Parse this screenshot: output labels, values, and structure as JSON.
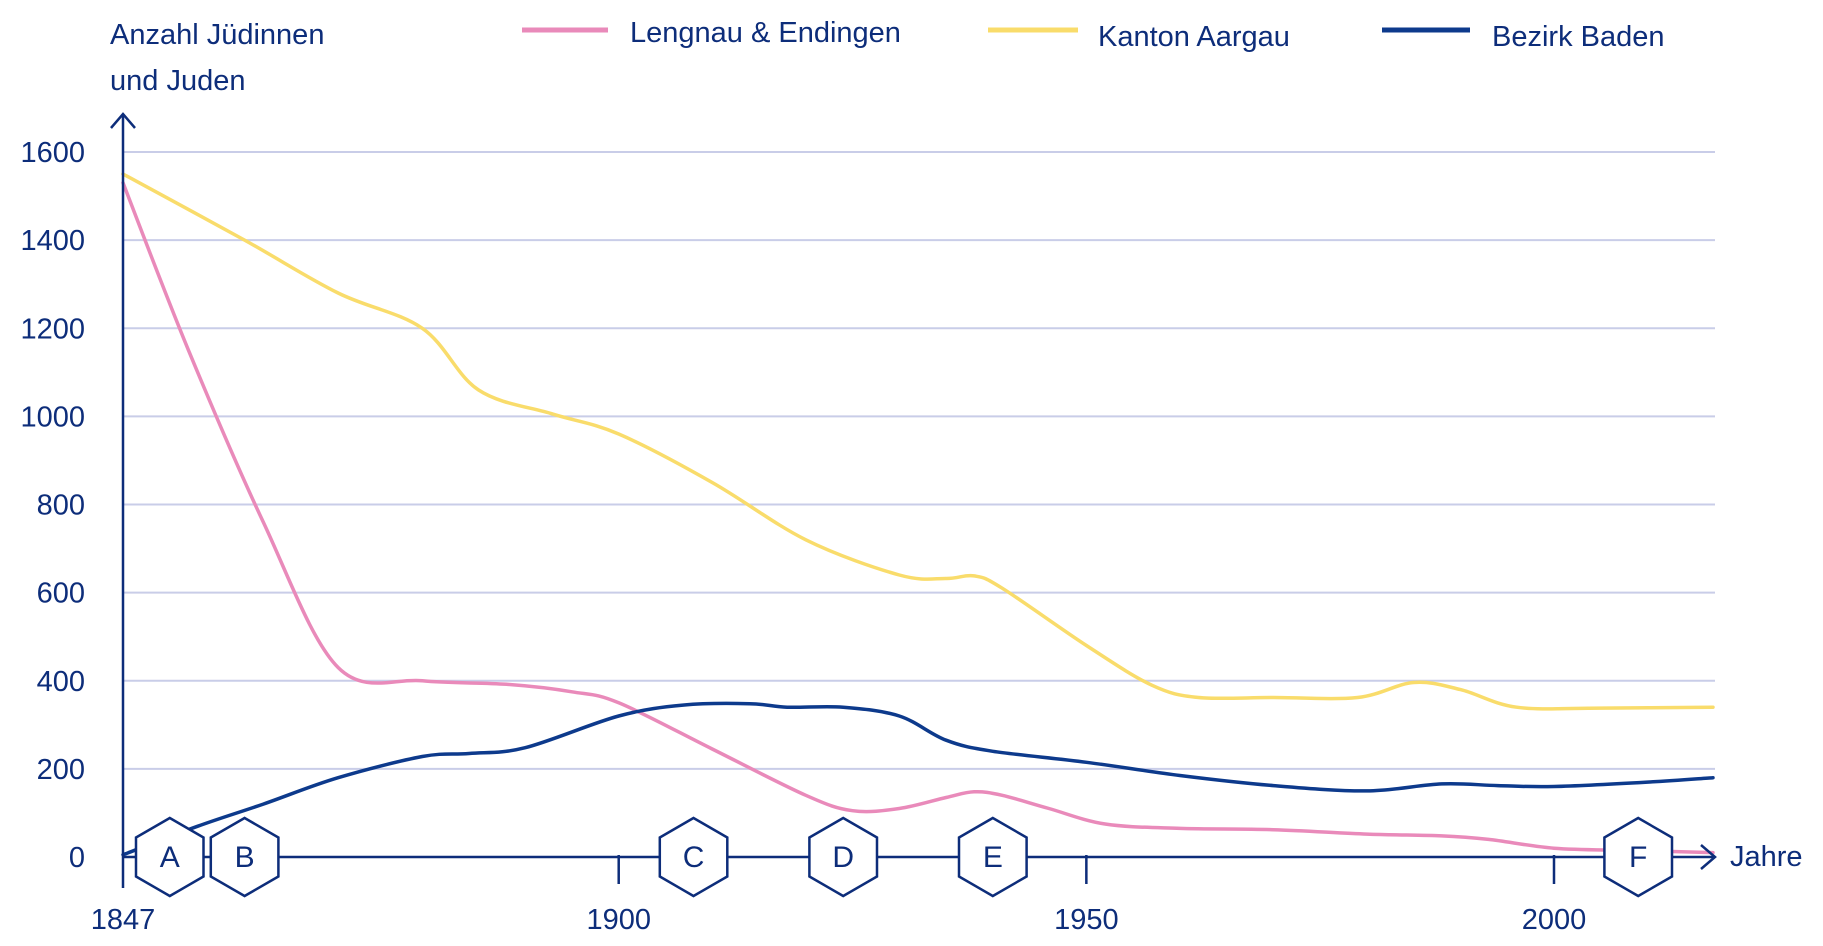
{
  "chart_data": {
    "type": "line",
    "ylabel_line1": "Anzahl Jüdinnen",
    "ylabel_line2": "und Juden",
    "xlabel": "Jahre",
    "xlim": [
      1847,
      2017
    ],
    "ylim": [
      0,
      1600
    ],
    "x_ticks": [
      "1847",
      "1900",
      "1950",
      "2000"
    ],
    "y_ticks": [
      "0",
      "200",
      "400",
      "600",
      "800",
      "1000",
      "1200",
      "1400",
      "1600"
    ],
    "grid": true,
    "legend_position": "top",
    "colors": {
      "axis": "#0d2d7a",
      "grid": "#c9cde8"
    },
    "series": [
      {
        "name": "Lengnau & Endingen",
        "color": "#e98aba",
        "points": [
          [
            1847,
            1530
          ],
          [
            1854,
            1150
          ],
          [
            1862,
            760
          ],
          [
            1870,
            430
          ],
          [
            1879,
            400
          ],
          [
            1888,
            392
          ],
          [
            1895,
            375
          ],
          [
            1900,
            350
          ],
          [
            1910,
            245
          ],
          [
            1920,
            140
          ],
          [
            1925,
            105
          ],
          [
            1930,
            110
          ],
          [
            1935,
            135
          ],
          [
            1938,
            148
          ],
          [
            1941,
            140
          ],
          [
            1946,
            110
          ],
          [
            1952,
            75
          ],
          [
            1960,
            65
          ],
          [
            1970,
            62
          ],
          [
            1980,
            52
          ],
          [
            1988,
            48
          ],
          [
            1993,
            40
          ],
          [
            2000,
            20
          ],
          [
            2008,
            15
          ],
          [
            2017,
            10
          ]
        ]
      },
      {
        "name": "Kanton Aargau",
        "color": "#f9dc6b",
        "points": [
          [
            1847,
            1550
          ],
          [
            1860,
            1400
          ],
          [
            1870,
            1280
          ],
          [
            1879,
            1200
          ],
          [
            1885,
            1060
          ],
          [
            1893,
            1005
          ],
          [
            1900,
            960
          ],
          [
            1910,
            850
          ],
          [
            1920,
            720
          ],
          [
            1930,
            640
          ],
          [
            1935,
            632
          ],
          [
            1938,
            638
          ],
          [
            1941,
            610
          ],
          [
            1950,
            480
          ],
          [
            1957,
            390
          ],
          [
            1962,
            362
          ],
          [
            1970,
            362
          ],
          [
            1979,
            362
          ],
          [
            1985,
            396
          ],
          [
            1990,
            380
          ],
          [
            1996,
            340
          ],
          [
            2005,
            338
          ],
          [
            2017,
            340
          ]
        ]
      },
      {
        "name": "Bezirk Baden",
        "color": "#0d3a8c",
        "points": [
          [
            1847,
            5
          ],
          [
            1855,
            70
          ],
          [
            1862,
            120
          ],
          [
            1870,
            180
          ],
          [
            1879,
            228
          ],
          [
            1884,
            235
          ],
          [
            1890,
            248
          ],
          [
            1900,
            320
          ],
          [
            1907,
            345
          ],
          [
            1914,
            348
          ],
          [
            1918,
            340
          ],
          [
            1924,
            340
          ],
          [
            1930,
            320
          ],
          [
            1935,
            265
          ],
          [
            1940,
            240
          ],
          [
            1950,
            215
          ],
          [
            1960,
            185
          ],
          [
            1970,
            162
          ],
          [
            1980,
            150
          ],
          [
            1988,
            166
          ],
          [
            1994,
            162
          ],
          [
            2000,
            160
          ],
          [
            2010,
            170
          ],
          [
            2017,
            180
          ]
        ]
      }
    ]
  },
  "markers": [
    {
      "label": "A",
      "year": 1852
    },
    {
      "label": "B",
      "year": 1860
    },
    {
      "label": "C",
      "year": 1908
    },
    {
      "label": "D",
      "year": 1924
    },
    {
      "label": "E",
      "year": 1940
    },
    {
      "label": "F",
      "year": 2009
    }
  ]
}
